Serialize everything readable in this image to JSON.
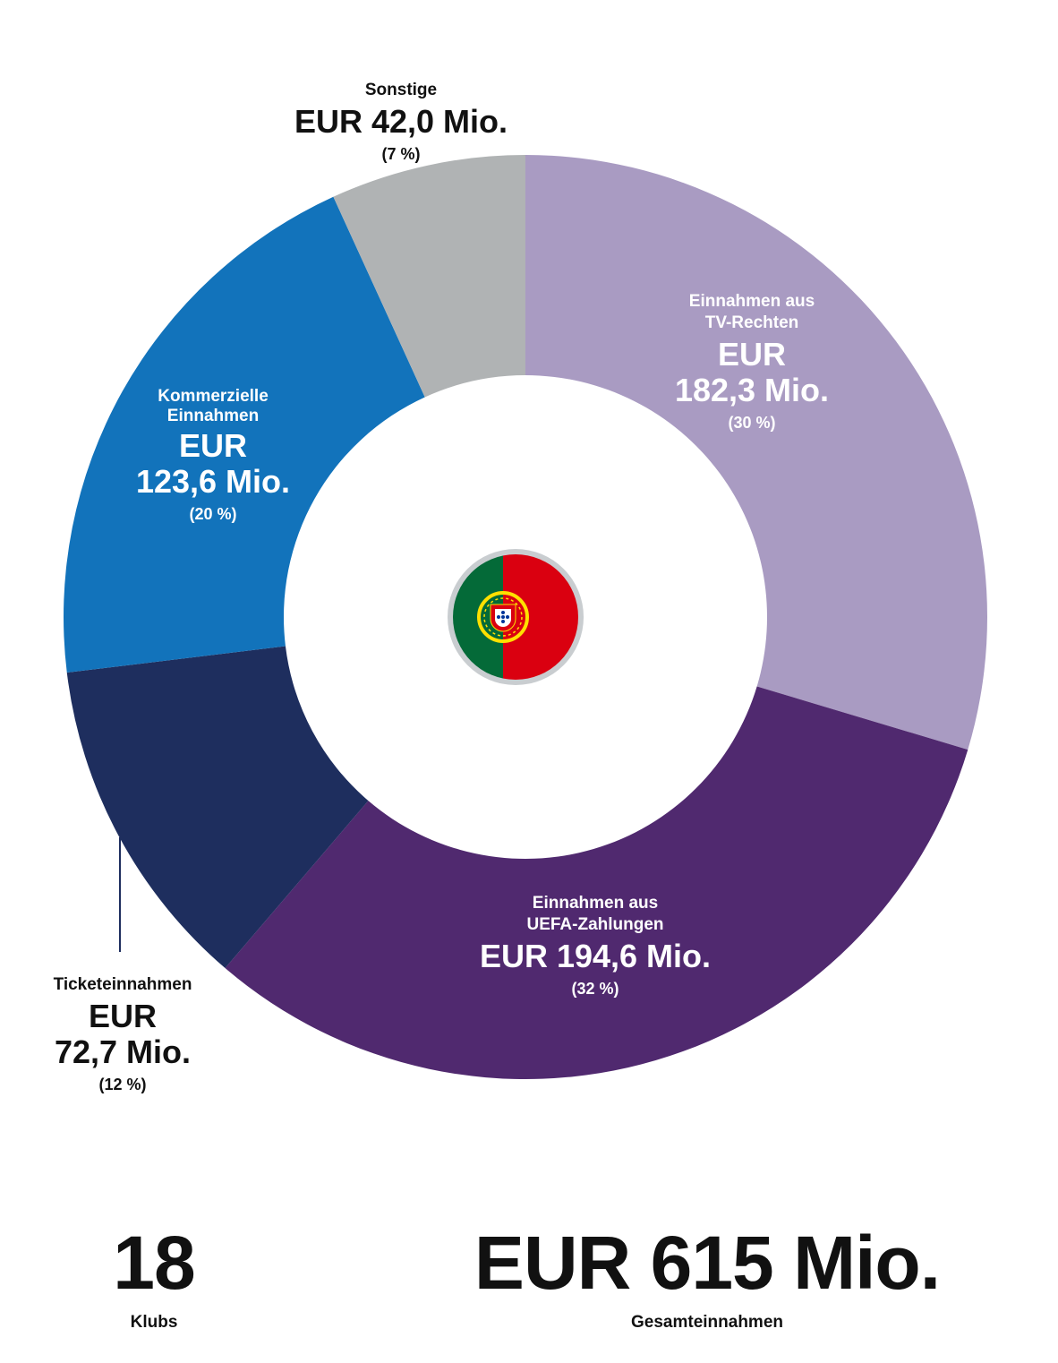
{
  "chart_data": {
    "type": "donut",
    "currency": "EUR",
    "slices": [
      {
        "id": "tv",
        "label_lines": [
          "Einnahmen aus",
          "TV-Rechten"
        ],
        "amount_lines": [
          "EUR",
          "182,3 Mio."
        ],
        "pct_label": "(30 %)",
        "value": 182.3,
        "color": "#A99BC2",
        "text_color": "#ffffff"
      },
      {
        "id": "uefa",
        "label_lines": [
          "Einnahmen aus",
          "UEFA-Zahlungen"
        ],
        "amount_lines": [
          "EUR 194,6 Mio."
        ],
        "pct_label": "(32 %)",
        "value": 194.6,
        "color": "#50296F",
        "text_color": "#ffffff"
      },
      {
        "id": "ticket",
        "label_lines": [
          "Ticketeinnahmen"
        ],
        "amount_lines": [
          "EUR",
          "72,7 Mio."
        ],
        "pct_label": "(12 %)",
        "value": 72.7,
        "color": "#1E2E5E",
        "text_color": "#111111"
      },
      {
        "id": "commercial",
        "label_lines": [
          "Kommerzielle",
          "Einnahmen"
        ],
        "amount_lines": [
          "EUR",
          "123,6 Mio."
        ],
        "pct_label": "(20 %)",
        "value": 123.6,
        "color": "#1273BB",
        "text_color": "#ffffff"
      },
      {
        "id": "other",
        "label_lines": [
          "Sonstige"
        ],
        "amount_lines": [
          "EUR 42,0 Mio."
        ],
        "pct_label": "(7 %)",
        "value": 42.0,
        "color": "#B0B3B4",
        "text_color": "#111111"
      }
    ],
    "center_icon": "portugal-flag-icon"
  },
  "stats": {
    "clubs_value": "18",
    "clubs_label": "Klubs",
    "total_value": "EUR 615 Mio.",
    "total_label": "Gesamteinnahmen"
  }
}
